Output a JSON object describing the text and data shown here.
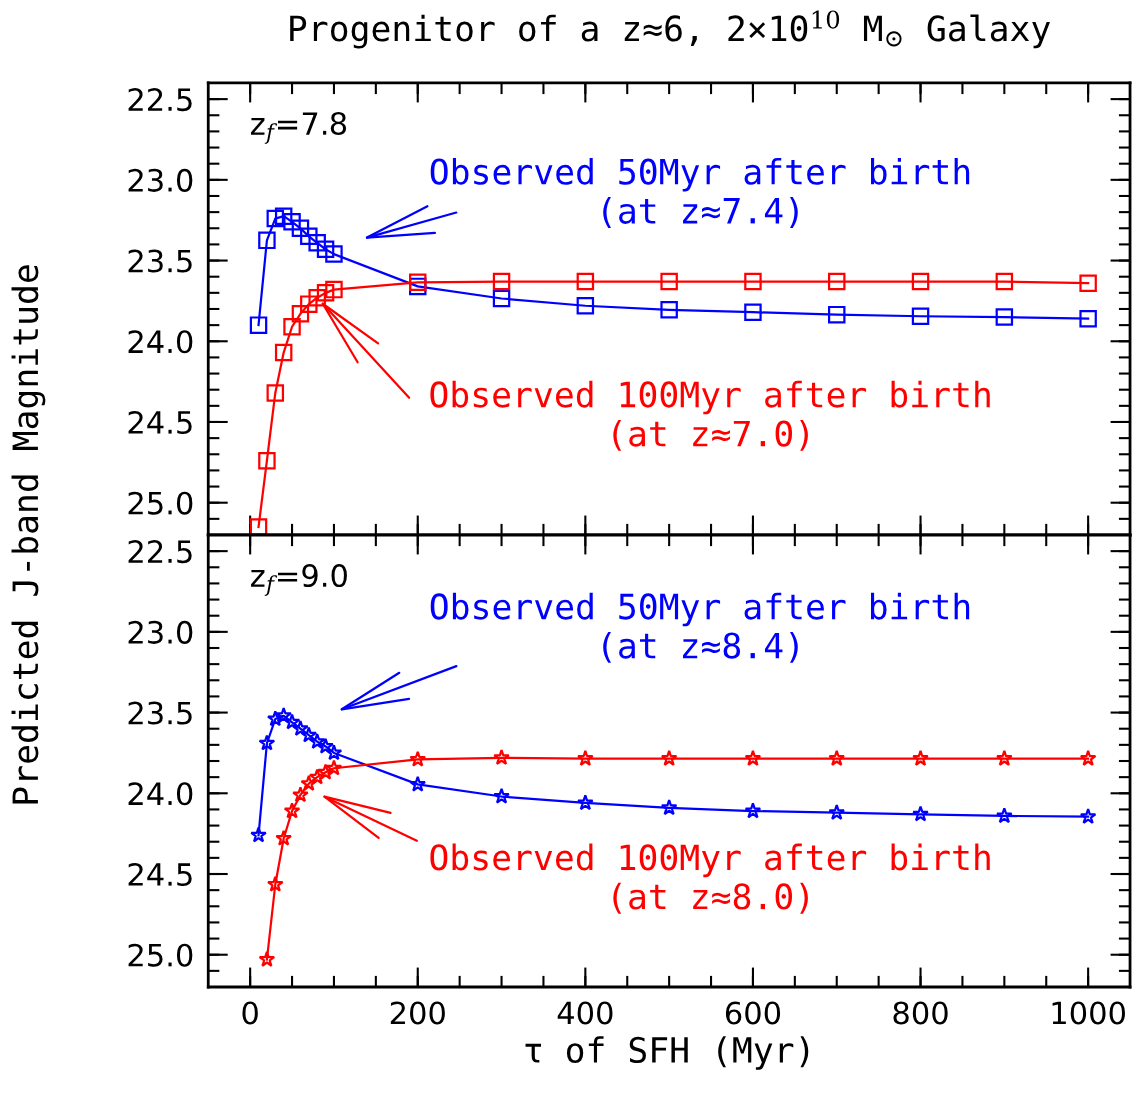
{
  "chart_data": [
    {
      "type": "line",
      "title": "Progenitor of a z≈6, 2×10$^{10}$ M$_{⊙}$ Galaxy",
      "ylabel": "Predicted J-band Magnitude",
      "x": [
        10,
        20,
        30,
        40,
        50,
        60,
        70,
        80,
        90,
        100,
        200,
        300,
        400,
        500,
        600,
        700,
        800,
        900,
        1000
      ],
      "series": [
        {
          "color": "#0000ff",
          "values": [
            23.9,
            23.375,
            23.24,
            23.225,
            23.26,
            23.3,
            23.35,
            23.39,
            23.43,
            23.46,
            23.66,
            23.735,
            23.78,
            23.805,
            23.82,
            23.835,
            23.845,
            23.85,
            23.86
          ]
        },
        {
          "color": "#ff0000",
          "values": [
            25.15,
            24.74,
            24.32,
            24.07,
            23.91,
            23.83,
            23.77,
            23.73,
            23.7,
            23.68,
            23.635,
            23.63,
            23.63,
            23.63,
            23.63,
            23.63,
            23.63,
            23.63,
            23.64
          ]
        }
      ],
      "marker": "square",
      "line_style": "solid",
      "legend": false,
      "grid": false,
      "tick_labels": "y",
      "xlim": [
        -50,
        1050
      ],
      "xticks": [
        0,
        200,
        400,
        600,
        800,
        1000
      ],
      "ylim": [
        25.2,
        22.4
      ],
      "yticks": [
        {
          "value": 22.5,
          "label": "22.5"
        },
        {
          "value": 23,
          "label": "23.0"
        },
        {
          "value": 23.5,
          "label": "23.5"
        },
        {
          "value": 24,
          "label": "24.0"
        },
        {
          "value": 24.5,
          "label": "24.5"
        },
        {
          "value": 25,
          "label": "25.0"
        }
      ],
      "annotations": [
        "z$_{f}$=7.8",
        "Observed 50Myr after birth\n(at z≈7.4)",
        {
          "text": "Observed 100Myr after birth\n(at z≈7.0)",
          "x": 80,
          "y": 23.73
        }
      ]
    },
    {
      "type": "line",
      "xlabel": "τ of SFH (Myr)",
      "x": [
        10,
        20,
        30,
        40,
        50,
        60,
        70,
        80,
        90,
        100,
        200,
        300,
        400,
        500,
        600,
        700,
        800,
        900,
        1000
      ],
      "series": [
        {
          "color": "#0000ff",
          "values": [
            24.26,
            23.69,
            23.54,
            23.52,
            23.56,
            23.6,
            23.64,
            23.68,
            23.71,
            23.75,
            23.945,
            24.02,
            24.06,
            24.09,
            24.11,
            24.12,
            24.13,
            24.14,
            24.145
          ]
        },
        {
          "color": "#ff0000",
          "values": [
            null,
            25.03,
            24.565,
            24.28,
            24.11,
            24.01,
            23.94,
            23.9,
            23.87,
            23.845,
            23.79,
            23.78,
            23.785,
            23.785,
            23.785,
            23.785,
            23.785,
            23.785,
            23.785
          ]
        }
      ],
      "marker": "star",
      "line_style": "solid",
      "legend": false,
      "grid": false,
      "xlim": [
        -50,
        1050
      ],
      "xticks": [
        0,
        200,
        400,
        600,
        800,
        1000
      ],
      "ylim": [
        25.2,
        22.4
      ],
      "yticks": [
        {
          "value": 22.5,
          "label": "22.5"
        },
        {
          "value": 23,
          "label": "23.0"
        },
        {
          "value": 23.5,
          "label": "23.5"
        },
        {
          "value": 24,
          "label": "24.0"
        },
        {
          "value": 24.5,
          "label": "24.5"
        },
        {
          "value": 25,
          "label": "25.0"
        }
      ],
      "annotations": [
        "z$_{f}$=9.0",
        "Observed 50Myr after birth\n(at z≈8.4)",
        "Observed 100Myr after birth\n(at z≈8.0)"
      ]
    }
  ]
}
